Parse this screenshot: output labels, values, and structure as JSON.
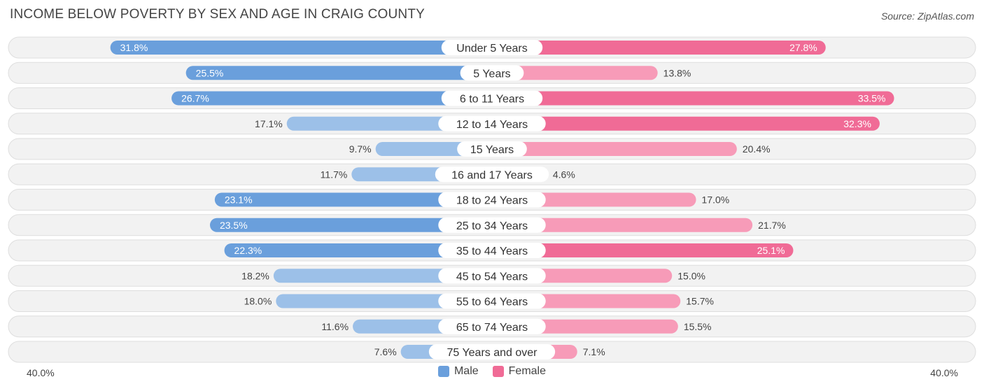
{
  "header": {
    "title": "INCOME BELOW POVERTY BY SEX AND AGE IN CRAIG COUNTY",
    "source": "Source: ZipAtlas.com"
  },
  "colors": {
    "male_strong": "#6a9fdc",
    "male_light": "#9cc0e8",
    "female_strong": "#f06b96",
    "female_light": "#f79bb8",
    "row_bg": "#f2f2f2",
    "row_border": "#dedede"
  },
  "axis": {
    "left_label": "40.0%",
    "right_label": "40.0%"
  },
  "legend": {
    "male": "Male",
    "female": "Female"
  },
  "chart_data": {
    "type": "bar",
    "orientation": "horizontal-diverging",
    "title": "INCOME BELOW POVERTY BY SEX AND AGE IN CRAIG COUNTY",
    "xlim": [
      -40,
      40
    ],
    "categories": [
      "Under 5 Years",
      "5 Years",
      "6 to 11 Years",
      "12 to 14 Years",
      "15 Years",
      "16 and 17 Years",
      "18 to 24 Years",
      "25 to 34 Years",
      "35 to 44 Years",
      "45 to 54 Years",
      "55 to 64 Years",
      "65 to 74 Years",
      "75 Years and over"
    ],
    "series": [
      {
        "name": "Male",
        "values": [
          31.8,
          25.5,
          26.7,
          17.1,
          9.7,
          11.7,
          23.1,
          23.5,
          22.3,
          18.2,
          18.0,
          11.6,
          7.6
        ],
        "labels": [
          "31.8%",
          "25.5%",
          "26.7%",
          "17.1%",
          "9.7%",
          "11.7%",
          "23.1%",
          "23.5%",
          "22.3%",
          "18.2%",
          "18.0%",
          "11.6%",
          "7.6%"
        ]
      },
      {
        "name": "Female",
        "values": [
          27.8,
          13.8,
          33.5,
          32.3,
          20.4,
          4.6,
          17.0,
          21.7,
          25.1,
          15.0,
          15.7,
          15.5,
          7.1
        ],
        "labels": [
          "27.8%",
          "13.8%",
          "33.5%",
          "32.3%",
          "20.4%",
          "4.6%",
          "17.0%",
          "21.7%",
          "25.1%",
          "15.0%",
          "15.7%",
          "15.5%",
          "7.1%"
        ]
      }
    ],
    "legend": [
      "Male",
      "Female"
    ]
  }
}
